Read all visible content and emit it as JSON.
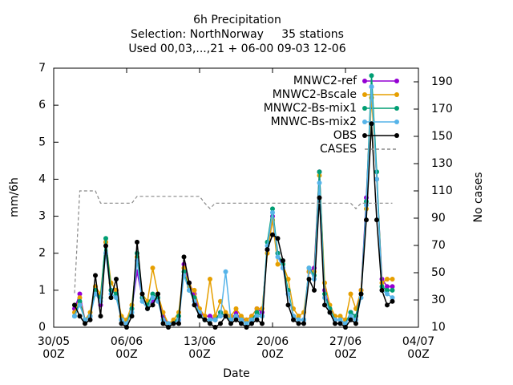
{
  "chart_data": {
    "type": "line",
    "title": "6h Precipitation",
    "subtitle": [
      "Selection: NorthNorway     35 stations",
      "Used 00,03,...,21 + 06-00 09-03 12-06"
    ],
    "x_label": "Date",
    "y_label": "mm/6h",
    "y2_label": "No cases",
    "xlim": [
      "30/05 00Z",
      "04/07 00Z"
    ],
    "xticks": [
      "30/05 00Z",
      "06/06 00Z",
      "13/06 00Z",
      "20/06 00Z",
      "27/06 00Z",
      "04/07 00Z"
    ],
    "ylim": [
      0,
      7
    ],
    "yticks": [
      0,
      1,
      2,
      3,
      4,
      5,
      6,
      7
    ],
    "y2lim": [
      10,
      200
    ],
    "y2ticks": [
      10,
      30,
      50,
      70,
      90,
      110,
      130,
      150,
      170,
      190
    ],
    "legend": "upper right",
    "grid": false,
    "x": [
      "01/06 00Z",
      "01/06 12Z",
      "02/06 00Z",
      "02/06 12Z",
      "03/06 00Z",
      "03/06 12Z",
      "04/06 00Z",
      "04/06 12Z",
      "05/06 00Z",
      "05/06 12Z",
      "06/06 00Z",
      "06/06 12Z",
      "07/06 00Z",
      "07/06 12Z",
      "08/06 00Z",
      "08/06 12Z",
      "09/06 00Z",
      "09/06 12Z",
      "10/06 00Z",
      "10/06 12Z",
      "11/06 00Z",
      "11/06 12Z",
      "12/06 00Z",
      "12/06 12Z",
      "13/06 00Z",
      "13/06 12Z",
      "14/06 00Z",
      "14/06 12Z",
      "15/06 00Z",
      "15/06 12Z",
      "16/06 00Z",
      "16/06 12Z",
      "17/06 00Z",
      "17/06 12Z",
      "18/06 00Z",
      "18/06 12Z",
      "19/06 00Z",
      "19/06 12Z",
      "20/06 00Z",
      "20/06 12Z",
      "21/06 00Z",
      "21/06 12Z",
      "22/06 00Z",
      "22/06 12Z",
      "23/06 00Z",
      "23/06 12Z",
      "24/06 00Z",
      "24/06 12Z",
      "25/06 00Z",
      "25/06 12Z",
      "26/06 00Z",
      "26/06 12Z",
      "27/06 00Z",
      "27/06 12Z",
      "28/06 00Z",
      "28/06 12Z",
      "29/06 00Z",
      "29/06 12Z",
      "30/06 00Z",
      "30/06 12Z",
      "01/07 00Z",
      "01/07 12Z"
    ],
    "series": [
      {
        "name": "MNWC2-ref",
        "color": "#9400d3",
        "values": [
          0.5,
          0.9,
          0.2,
          0.3,
          1.0,
          0.6,
          2.3,
          1.0,
          1.0,
          0.2,
          0.1,
          0.5,
          1.5,
          0.8,
          0.6,
          0.7,
          0.8,
          0.3,
          0.1,
          0.1,
          0.2,
          1.7,
          1.2,
          0.9,
          0.4,
          0.3,
          0.3,
          0.2,
          0.4,
          0.3,
          0.2,
          0.4,
          0.2,
          0.2,
          0.3,
          0.5,
          0.4,
          2.1,
          3.0,
          2.0,
          1.6,
          0.9,
          0.3,
          0.2,
          0.2,
          1.5,
          1.6,
          4.2,
          1.0,
          0.5,
          0.2,
          0.2,
          0.1,
          0.4,
          0.3,
          1.0,
          3.5,
          6.5,
          4.0,
          1.3,
          1.1,
          1.1
        ]
      },
      {
        "name": "MNWC2-Bscale",
        "color": "#e69f00",
        "values": [
          0.4,
          0.8,
          0.2,
          0.4,
          1.1,
          0.9,
          2.3,
          1.2,
          1.0,
          0.3,
          0.2,
          0.6,
          1.9,
          0.9,
          0.7,
          1.6,
          0.9,
          0.4,
          0.1,
          0.2,
          0.4,
          1.6,
          1.1,
          1.0,
          0.5,
          0.3,
          1.3,
          0.3,
          0.7,
          0.4,
          0.3,
          0.5,
          0.3,
          0.2,
          0.3,
          0.5,
          0.5,
          2.0,
          2.9,
          1.7,
          1.7,
          1.3,
          0.5,
          0.3,
          0.4,
          1.5,
          1.5,
          4.1,
          1.2,
          0.6,
          0.3,
          0.3,
          0.2,
          0.9,
          0.5,
          1.0,
          3.2,
          6.2,
          4.0,
          1.2,
          1.3,
          1.3
        ]
      },
      {
        "name": "MNWC2-Bs-mix1",
        "color": "#009e73",
        "values": [
          0.3,
          0.7,
          0.2,
          0.3,
          1.0,
          0.8,
          2.4,
          1.0,
          0.9,
          0.2,
          0.1,
          0.5,
          2.0,
          0.8,
          0.6,
          0.9,
          0.8,
          0.2,
          0.1,
          0.1,
          0.3,
          1.5,
          1.0,
          0.8,
          0.3,
          0.2,
          0.2,
          0.2,
          0.4,
          0.3,
          0.2,
          0.3,
          0.2,
          0.1,
          0.2,
          0.4,
          0.3,
          2.3,
          3.2,
          2.0,
          1.7,
          1.0,
          0.3,
          0.2,
          0.2,
          1.6,
          1.4,
          4.2,
          0.9,
          0.5,
          0.2,
          0.2,
          0.1,
          0.4,
          0.3,
          0.9,
          3.4,
          6.8,
          4.2,
          1.1,
          1.0,
          1.0
        ]
      },
      {
        "name": "MNWC-Bs-mix2",
        "color": "#56b4e9",
        "values": [
          0.3,
          0.6,
          0.2,
          0.3,
          0.9,
          0.7,
          2.0,
          0.9,
          0.8,
          0.2,
          0.1,
          0.4,
          1.8,
          0.7,
          0.5,
          0.8,
          0.7,
          0.2,
          0.1,
          0.1,
          0.2,
          1.4,
          1.0,
          0.7,
          0.4,
          0.2,
          0.2,
          0.2,
          0.3,
          1.5,
          0.2,
          0.3,
          0.2,
          0.1,
          0.2,
          0.3,
          0.3,
          2.2,
          3.1,
          1.9,
          1.6,
          0.9,
          0.3,
          0.2,
          0.2,
          1.6,
          1.3,
          3.9,
          0.8,
          0.4,
          0.2,
          0.2,
          0.1,
          0.3,
          0.2,
          0.8,
          3.3,
          6.5,
          4.0,
          1.0,
          0.9,
          0.8
        ]
      },
      {
        "name": "OBS",
        "color": "#000000",
        "values": [
          0.6,
          0.3,
          0.1,
          0.2,
          1.4,
          0.3,
          2.2,
          0.8,
          1.3,
          0.1,
          0.0,
          0.3,
          2.3,
          0.9,
          0.5,
          0.6,
          0.9,
          0.1,
          0.0,
          0.1,
          0.1,
          1.9,
          1.2,
          0.6,
          0.3,
          0.2,
          0.1,
          0.0,
          0.1,
          0.3,
          0.1,
          0.2,
          0.1,
          0.0,
          0.1,
          0.2,
          0.1,
          2.1,
          2.5,
          2.4,
          1.8,
          0.6,
          0.2,
          0.1,
          0.1,
          1.3,
          1.0,
          3.5,
          0.6,
          0.4,
          0.1,
          0.1,
          0.0,
          0.2,
          0.1,
          0.9,
          2.9,
          5.5,
          2.9,
          1.0,
          0.6,
          0.7
        ]
      },
      {
        "name": "CASES",
        "color": "#888888",
        "axis": "y2",
        "dashed": true,
        "values": [
          35,
          110,
          110,
          110,
          110,
          101,
          101,
          101,
          101,
          101,
          101,
          101,
          106,
          106,
          106,
          106,
          106,
          106,
          106,
          106,
          106,
          106,
          106,
          106,
          106,
          101,
          97,
          101,
          101,
          101,
          101,
          101,
          101,
          101,
          101,
          101,
          101,
          101,
          101,
          101,
          101,
          101,
          101,
          101,
          101,
          101,
          101,
          101,
          101,
          101,
          101,
          101,
          101,
          101,
          97,
          101,
          101,
          101,
          101,
          101,
          101,
          101
        ]
      }
    ]
  }
}
